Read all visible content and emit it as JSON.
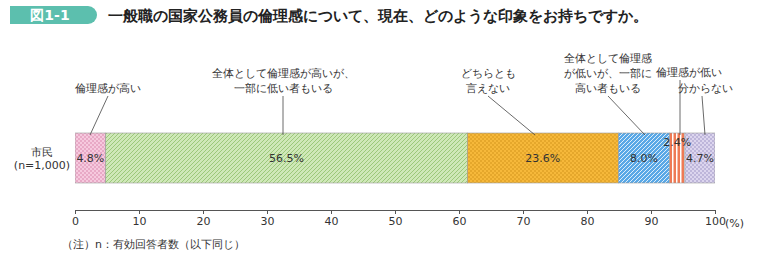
{
  "chart_data": {
    "type": "bar",
    "orientation": "horizontal",
    "stacked": true,
    "data_labels": true,
    "title": "一般職の国家公務員の倫理感について、現在、どのような印象をお持ちですか。",
    "annotations": [
      "図1-1",
      "（注）n：有効回答者数（以下同じ）"
    ],
    "xlabel": "(%)",
    "xlim": [
      0,
      100
    ],
    "xticks": [
      0,
      10,
      20,
      30,
      40,
      50,
      60,
      70,
      80,
      90,
      100
    ],
    "categories": [
      "市民\n(n=1,000)"
    ],
    "series": [
      {
        "name": "倫理感が高い",
        "color": "#f6c9de",
        "values": [
          4.8
        ],
        "value_labels": [
          "4.8%"
        ]
      },
      {
        "name": "全体として倫理感が高いが、\n一部に低い者もいる",
        "color": "#cfe8b8",
        "values": [
          56.5
        ],
        "value_labels": [
          "56.5%"
        ]
      },
      {
        "name": "どちらとも\n言えない",
        "color": "#f6b83a",
        "values": [
          23.6
        ],
        "value_labels": [
          "23.6%"
        ]
      },
      {
        "name": "全体として倫理感\nが低いが、一部に\n高い者もいる",
        "color": "#5aa8e6",
        "values": [
          8.0
        ],
        "value_labels": [
          "8.0%"
        ]
      },
      {
        "name": "倫理感が低い",
        "color": "#ee7a55",
        "values": [
          2.4
        ],
        "value_labels": [
          "2.4%"
        ]
      },
      {
        "name": "分からない",
        "color": "#dcd5ee",
        "values": [
          4.7
        ],
        "value_labels": [
          "4.7%"
        ]
      }
    ]
  }
}
